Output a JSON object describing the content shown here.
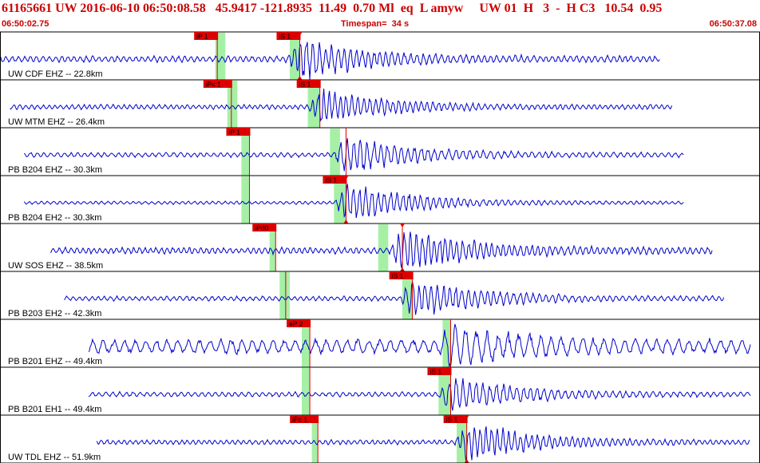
{
  "header": {
    "title": "61165661 UW 2016-06-10 06:50:08.58   45.9417 -121.8935  11.49  0.70 Ml  eq  L amyw     UW 01  H   3  -  H C3   10.54  0.95",
    "start_time": "06:50:02.75",
    "timespan": "Timespan=  34 s",
    "end_time": "06:50:37.08"
  },
  "colors": {
    "trace": "#0000cc",
    "pick": "#dd0000",
    "window": "#a6f0a6",
    "title": "#cc0000",
    "grid": "#000000"
  },
  "chart_data": {
    "type": "line",
    "x_range_s": [
      0,
      34
    ],
    "traces": [
      {
        "label": "UW CDF EHZ -- 22.8km",
        "start": 0,
        "end": 32.8,
        "amp": 4,
        "event_amp": 24,
        "period": 0.32,
        "event": 14.9,
        "picks": [
          {
            "label": "iP 1",
            "t": 10.8,
            "window": [
              10.7,
              11.2
            ]
          },
          {
            "label": "iS 1",
            "t": 14.9,
            "window": [
              14.4,
              14.9
            ],
            "mark": true
          }
        ]
      },
      {
        "label": "UW MTM EHZ -- 26.4km",
        "start": 0.5,
        "end": 33.4,
        "amp": 3,
        "event_amp": 20,
        "period": 0.3,
        "event": 15.9,
        "picks": [
          {
            "label": "iPc 1",
            "t": 11.5,
            "window": [
              11.3,
              11.8
            ]
          },
          {
            "label": "iS 1",
            "t": 15.9,
            "window": [
              15.3,
              15.9
            ]
          }
        ]
      },
      {
        "label": "PB B204 EHZ -- 30.3km",
        "start": 1.2,
        "end": 34.0,
        "amp": 3,
        "event_amp": 22,
        "period": 0.35,
        "event": 17.2,
        "picks": [
          {
            "label": "iP 1",
            "t": 12.4,
            "window": [
              12.0,
              12.4
            ]
          },
          {
            "label": "",
            "t": 17.2,
            "window": [
              16.4,
              16.9
            ]
          }
        ]
      },
      {
        "label": "PB B204 EH2 -- 30.3km",
        "start": 1.2,
        "end": 34.0,
        "amp": 2,
        "event_amp": 24,
        "period": 0.32,
        "event": 17.2,
        "picks": [
          {
            "label": "",
            "t": 12.4,
            "window": [
              12.0,
              12.4
            ]
          },
          {
            "label": "iS 1",
            "t": 17.2,
            "window": [
              16.6,
              17.2
            ],
            "mark": true
          }
        ]
      },
      {
        "label": "UW SOS EHZ -- 38.5km",
        "start": 2.5,
        "end": 35.4,
        "amp": 4,
        "event_amp": 26,
        "period": 0.3,
        "event": 20.0,
        "picks": [
          {
            "label": "iPd0",
            "t": 13.7,
            "window": [
              13.4,
              13.7
            ]
          },
          {
            "label": "",
            "t": 20.0,
            "window": [
              18.8,
              19.3
            ],
            "mark": true
          }
        ]
      },
      {
        "label": "PB B203 EH2 -- 42.3km",
        "start": 3.2,
        "end": 36.0,
        "amp": 3,
        "event_amp": 24,
        "period": 0.33,
        "event": 20.5,
        "picks": [
          {
            "label": "",
            "t": 14.2,
            "window": [
              13.9,
              14.4
            ]
          },
          {
            "label": "iS 1",
            "t": 20.5,
            "window": [
              20.0,
              20.5
            ]
          }
        ]
      },
      {
        "label": "PB B201 EHZ -- 49.4km",
        "start": 4.4,
        "end": 37.3,
        "amp": 9,
        "event_amp": 20,
        "period": 0.55,
        "event": 22.4,
        "picks": [
          {
            "label": "eP 2",
            "t": 15.4,
            "window": [
              15.0,
              15.4
            ]
          },
          {
            "label": "",
            "t": 22.4,
            "window": [
              22.0,
              22.4
            ]
          }
        ]
      },
      {
        "label": "PB B201 EH1 -- 49.4km",
        "start": 4.4,
        "end": 37.3,
        "amp": 3,
        "event_amp": 22,
        "period": 0.35,
        "event": 22.4,
        "picks": [
          {
            "label": "",
            "t": 15.4,
            "window": [
              15.0,
              15.4
            ]
          },
          {
            "label": "iS 1",
            "t": 22.4,
            "window": [
              21.8,
              22.4
            ]
          }
        ]
      },
      {
        "label": "UW TDL EHZ -- 51.9km",
        "start": 4.8,
        "end": 37.3,
        "amp": 3,
        "event_amp": 24,
        "period": 0.3,
        "event": 23.2,
        "picks": [
          {
            "label": "iPc 1",
            "t": 15.8,
            "window": [
              15.5,
              15.8
            ]
          },
          {
            "label": "iS 1",
            "t": 23.2,
            "window": [
              22.7,
              23.2
            ],
            "mark": true
          }
        ]
      }
    ]
  }
}
